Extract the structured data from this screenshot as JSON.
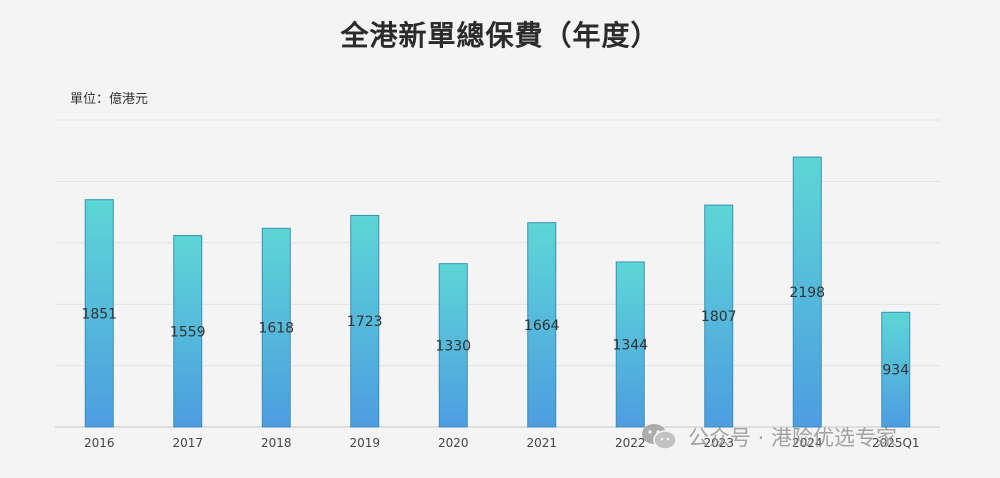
{
  "chart_data": {
    "type": "bar",
    "title": "全港新單總保費（年度）",
    "unit_label": "單位：億港元",
    "categories": [
      "2016",
      "2017",
      "2018",
      "2019",
      "2020",
      "2021",
      "2022",
      "2023",
      "2024",
      "2025Q1"
    ],
    "values": [
      1851,
      1559,
      1618,
      1723,
      1330,
      1664,
      1344,
      1807,
      2198,
      934
    ],
    "ylim": [
      0,
      2500
    ],
    "grid": true,
    "legend": "none",
    "bar_gradient": {
      "top": "#5dd6d6",
      "bottom": "#4d9de0"
    },
    "bar_stroke": "#3b8fb5",
    "label_color": "#333333"
  },
  "watermark": {
    "icon": "wechat-icon",
    "text": "公众号 · 港险优选专家"
  }
}
